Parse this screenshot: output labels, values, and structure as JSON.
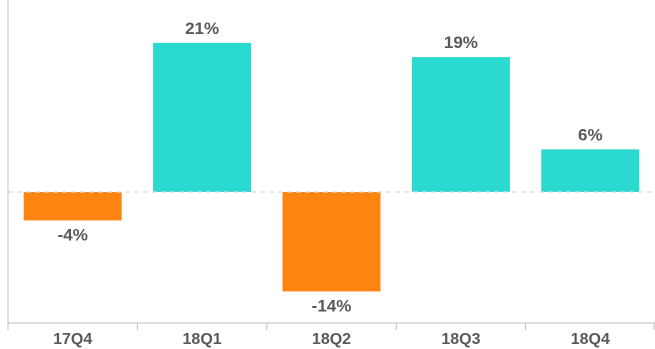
{
  "chart_data": {
    "type": "bar",
    "categories": [
      "17Q4",
      "18Q1",
      "18Q2",
      "18Q3",
      "18Q4"
    ],
    "values": [
      -4,
      21,
      -14,
      19,
      6
    ],
    "value_labels": [
      "-4%",
      "21%",
      "-14%",
      "19%",
      "6%"
    ],
    "unit": "%",
    "ylim": [
      -14,
      21
    ],
    "grid": false,
    "legend": "none",
    "colors": {
      "positive": "#2ad9d0",
      "negative": "#ff8512",
      "zero_line": "#d9d9d9",
      "axis": "#bfbfbf",
      "text": "#595959"
    }
  }
}
